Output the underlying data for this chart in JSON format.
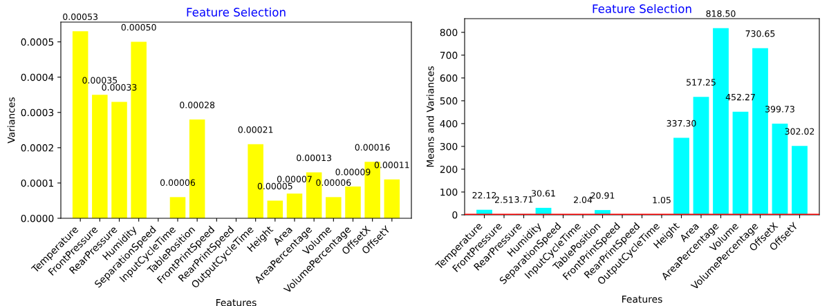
{
  "chart_data": [
    {
      "type": "bar",
      "title": "Feature Selection",
      "xlabel": "Features",
      "ylabel": "Variances",
      "categories": [
        "Temperature",
        "FrontPressure",
        "RearPressure",
        "Humidity",
        "SeparationSpeed",
        "InputCycleTime",
        "TablePosition",
        "FrontPrintSpeed",
        "RearPrintSpeed",
        "OutputCycleTime",
        "Height",
        "Area",
        "AreaPercentage",
        "Volume",
        "VolumePercentage",
        "OffsetX",
        "OffsetY"
      ],
      "values": [
        0.00053,
        0.00035,
        0.00033,
        0.0005,
        null,
        6e-05,
        0.00028,
        null,
        null,
        0.00021,
        5e-05,
        7e-05,
        0.00013,
        6e-05,
        9e-05,
        0.00016,
        0.00011
      ],
      "value_labels": [
        "0.00053",
        "0.00035",
        "0.00033",
        "0.00050",
        null,
        "0.00006",
        "0.00028",
        null,
        null,
        "0.00021",
        "0.00005",
        "0.00007",
        "0.00013",
        "0.00006",
        "0.00009",
        "0.00016",
        "0.00011"
      ],
      "color": "#ffff00",
      "ylim": [
        0,
        0.000556
      ],
      "yticks": [
        {
          "value": 0,
          "label": "0.0000"
        },
        {
          "value": 0.0001,
          "label": "0.0001"
        },
        {
          "value": 0.0002,
          "label": "0.0002"
        },
        {
          "value": 0.0003,
          "label": "0.0003"
        },
        {
          "value": 0.0004,
          "label": "0.0004"
        },
        {
          "value": 0.0005,
          "label": "0.0005"
        }
      ]
    },
    {
      "type": "bar",
      "title": "Feature Selection",
      "xlabel": "Features",
      "ylabel": "Means and Variances",
      "categories": [
        "Temperature",
        "FrontPressure",
        "RearPressure",
        "Humidity",
        "SeparationSpeed",
        "InputCycleTime",
        "TablePosition",
        "FrontPrintSpeed",
        "RearPrintSpeed",
        "OutputCycleTime",
        "Height",
        "Area",
        "AreaPercentage",
        "Volume",
        "VolumePercentage",
        "OffsetX",
        "OffsetY"
      ],
      "values": [
        22.12,
        2.51,
        3.71,
        30.61,
        null,
        2.04,
        20.91,
        null,
        null,
        1.05,
        337.3,
        517.25,
        818.5,
        452.27,
        730.65,
        399.73,
        302.02
      ],
      "value_labels": [
        "22.12",
        "2.51",
        "3.71",
        "30.61",
        null,
        "2.04",
        "20.91",
        null,
        null,
        "1.05",
        "337.30",
        "517.25",
        "818.50",
        "452.27",
        "730.65",
        "399.73",
        "302.02"
      ],
      "color": "#00ffff",
      "ylim": [
        0,
        860
      ],
      "yticks": [
        0,
        100,
        200,
        300,
        400,
        500,
        600,
        700,
        800
      ],
      "ref_lines": [
        {
          "axis": "y",
          "value": 0,
          "color": "#ff0000"
        }
      ]
    }
  ]
}
